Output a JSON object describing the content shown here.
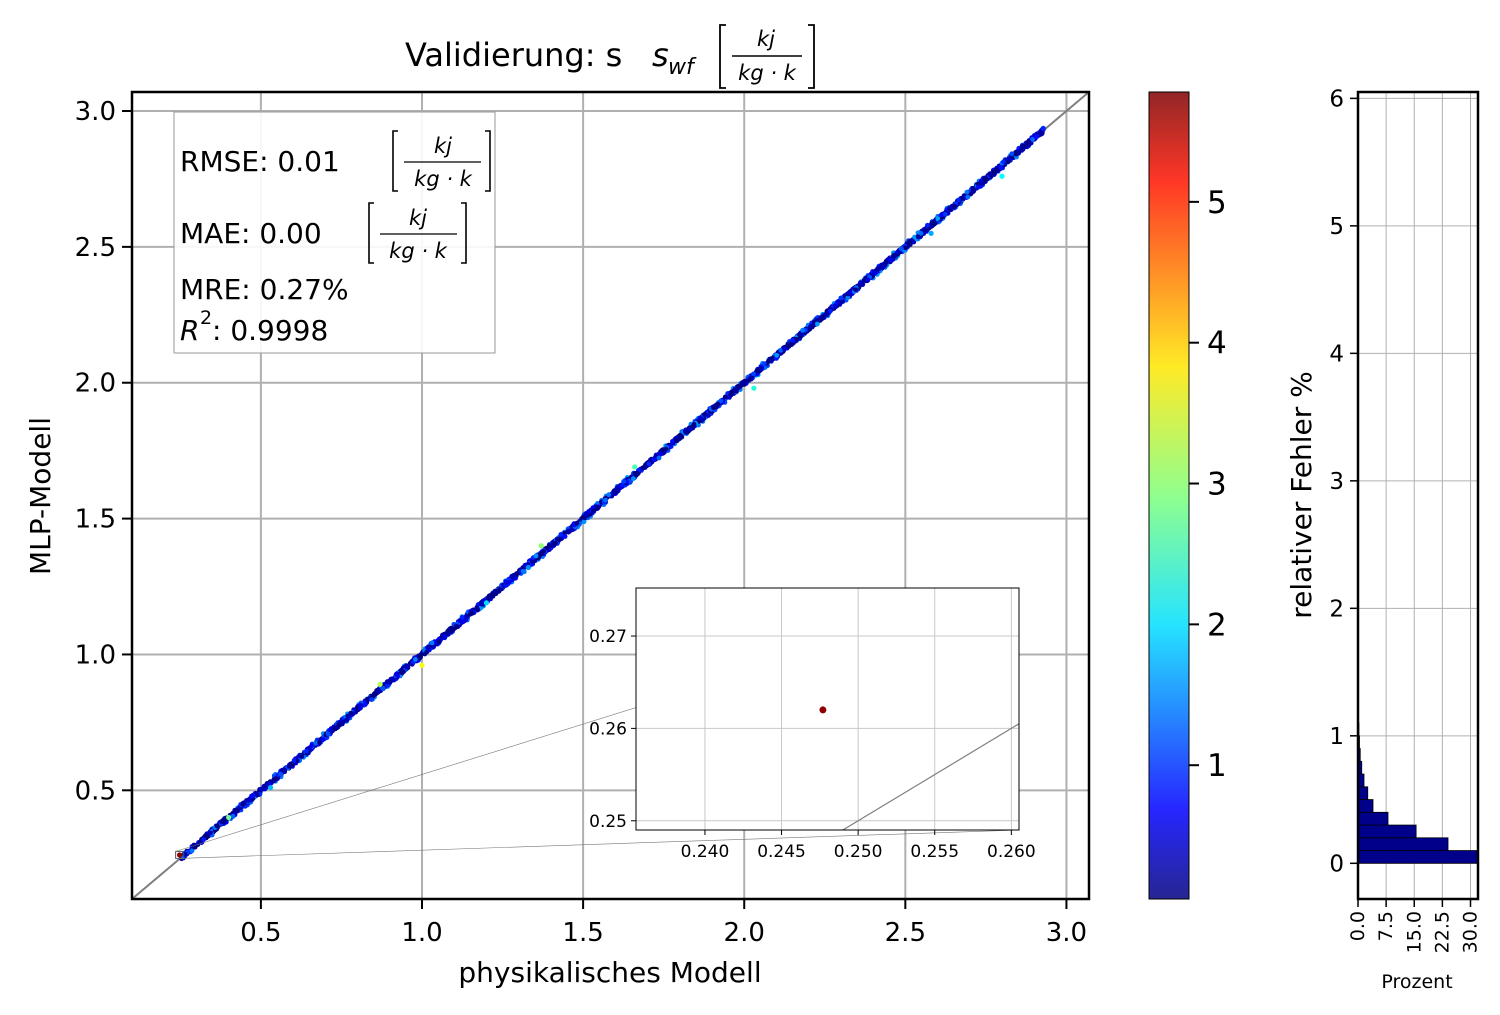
{
  "chart_data": [
    {
      "type": "scatter",
      "title": "Validierung: s",
      "title_sub": "wf",
      "title_unit_num": "kj",
      "title_unit_den": "kg · k",
      "xlabel": "physikalisches Modell",
      "ylabel": "MLP-Modell",
      "xlim": [
        0.1,
        3.07
      ],
      "ylim": [
        0.1,
        3.07
      ],
      "xticks": [
        "0.5",
        "1.0",
        "1.5",
        "2.0",
        "2.5",
        "3.0"
      ],
      "yticks": [
        "0.5",
        "1.0",
        "1.5",
        "2.0",
        "2.5",
        "3.0"
      ],
      "grid": true,
      "reference_line": "y = x",
      "stats": {
        "rmse_label": "RMSE: 0.01",
        "mae_label": "MAE: 0.00",
        "mre_label": "MRE: 0.27%",
        "r2_label": ": 0.9998",
        "unit_num": "kj",
        "unit_den": "kg · k"
      },
      "colormap": "jet",
      "color_variable": "relativer Fehler %",
      "points_description_range": {
        "x": [
          0.25,
          2.93
        ],
        "y": [
          0.26,
          2.93
        ]
      },
      "outliers": [
        {
          "x": 0.4,
          "y": 0.4,
          "err": 2.8
        },
        {
          "x": 0.87,
          "y": 0.89,
          "err": 3.2
        },
        {
          "x": 1.0,
          "y": 0.96,
          "err": 3.6
        },
        {
          "x": 1.37,
          "y": 1.4,
          "err": 3.0
        },
        {
          "x": 1.66,
          "y": 1.69,
          "err": 2.6
        },
        {
          "x": 2.03,
          "y": 1.98,
          "err": 2.4
        },
        {
          "x": 2.8,
          "y": 2.76,
          "err": 2.2
        },
        {
          "x": 0.53,
          "y": 0.51,
          "err": 1.8
        },
        {
          "x": 1.2,
          "y": 1.19,
          "err": 2.0
        },
        {
          "x": 1.33,
          "y": 1.32,
          "err": 1.6
        },
        {
          "x": 2.58,
          "y": 2.55,
          "err": 1.7
        }
      ]
    },
    {
      "type": "scatter",
      "role": "inset zoom",
      "xlim": [
        0.2355,
        0.2605
      ],
      "ylim": [
        0.249,
        0.2752
      ],
      "xticks": [
        "0.240",
        "0.245",
        "0.250",
        "0.255",
        "0.260"
      ],
      "yticks": [
        "0.25",
        "0.26",
        "0.27"
      ],
      "points": [
        {
          "x": 0.2477,
          "y": 0.262,
          "err": 5.7
        }
      ],
      "grid": true,
      "reference_line": "y = x"
    },
    {
      "type": "colorbar",
      "colormap": "jet",
      "range": [
        0.05,
        5.78
      ],
      "ticks": [
        "1",
        "2",
        "3",
        "4",
        "5"
      ],
      "label": "relativer Fehler %"
    },
    {
      "type": "bar",
      "orientation": "horizontal",
      "role": "histogram of relativer Fehler %",
      "xlabel": "Prozent",
      "xlim": [
        0,
        32
      ],
      "ylim": [
        -0.28,
        6.05
      ],
      "xticks": [
        "0.0",
        "7.5",
        "15.0",
        "22.5",
        "30.0"
      ],
      "yticks": [
        "0",
        "1",
        "2",
        "3",
        "4",
        "5",
        "6"
      ],
      "bar_color": "#00008b",
      "bins": [
        {
          "y0": 0.0,
          "y1": 0.1,
          "value": 32.0
        },
        {
          "y0": 0.1,
          "y1": 0.2,
          "value": 24.0
        },
        {
          "y0": 0.2,
          "y1": 0.3,
          "value": 15.5
        },
        {
          "y0": 0.3,
          "y1": 0.4,
          "value": 8.0
        },
        {
          "y0": 0.4,
          "y1": 0.5,
          "value": 4.0
        },
        {
          "y0": 0.5,
          "y1": 0.6,
          "value": 2.6
        },
        {
          "y0": 0.6,
          "y1": 0.7,
          "value": 1.6
        },
        {
          "y0": 0.7,
          "y1": 0.8,
          "value": 1.0
        },
        {
          "y0": 0.8,
          "y1": 0.9,
          "value": 0.6
        },
        {
          "y0": 0.9,
          "y1": 1.0,
          "value": 0.4
        },
        {
          "y0": 1.0,
          "y1": 1.1,
          "value": 0.25
        },
        {
          "y0": 1.1,
          "y1": 1.2,
          "value": 0.15
        },
        {
          "y0": 1.2,
          "y1": 1.3,
          "value": 0.1
        },
        {
          "y0": 1.3,
          "y1": 1.4,
          "value": 0.08
        },
        {
          "y0": 1.4,
          "y1": 1.5,
          "value": 0.05
        }
      ]
    }
  ]
}
